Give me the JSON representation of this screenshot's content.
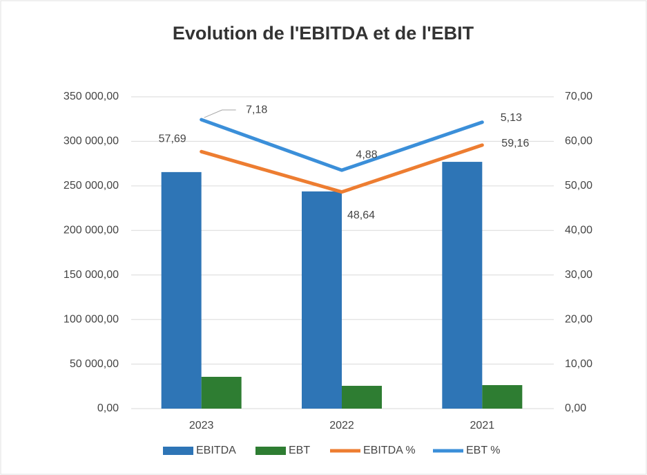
{
  "chart_data": {
    "type": "bar_line",
    "title": "Evolution de l'EBITDA et de l'EBIT",
    "categories": [
      "2023",
      "2022",
      "2021"
    ],
    "series": [
      {
        "name": "EBITDA",
        "type": "bar",
        "color": "#2e75b6",
        "values": [
          265500,
          243800,
          277000
        ]
      },
      {
        "name": "EBT",
        "type": "bar",
        "color": "#2e7d32",
        "values": [
          35700,
          25600,
          26400
        ]
      },
      {
        "name": "EBITDA %",
        "type": "line",
        "axis": "y2",
        "color": "#ed7d31",
        "values": [
          57.69,
          48.64,
          59.16
        ],
        "value_labels": [
          "57,69",
          "48,64",
          "59,16"
        ]
      },
      {
        "name": "EBT %",
        "type": "line",
        "axis": "y2",
        "stacked": true,
        "color": "#3b8fd9",
        "values": [
          7.18,
          4.88,
          5.13
        ],
        "value_labels": [
          "7,18",
          "4,88",
          "5,13"
        ]
      }
    ],
    "ylim": [
      0,
      350000
    ],
    "yticks": [
      {
        "value": 0,
        "label": "0,00"
      },
      {
        "value": 50000,
        "label": "50 000,00"
      },
      {
        "value": 100000,
        "label": "100 000,00"
      },
      {
        "value": 150000,
        "label": "150 000,00"
      },
      {
        "value": 200000,
        "label": "200 000,00"
      },
      {
        "value": 250000,
        "label": "250 000,00"
      },
      {
        "value": 300000,
        "label": "300 000,00"
      },
      {
        "value": 350000,
        "label": "350 000,00"
      }
    ],
    "y2lim": [
      0,
      70
    ],
    "y2ticks": [
      {
        "value": 0,
        "label": "0,00"
      },
      {
        "value": 10,
        "label": "10,00"
      },
      {
        "value": 20,
        "label": "20,00"
      },
      {
        "value": 30,
        "label": "30,00"
      },
      {
        "value": 40,
        "label": "40,00"
      },
      {
        "value": 50,
        "label": "50,00"
      },
      {
        "value": 60,
        "label": "60,00"
      },
      {
        "value": 70,
        "label": "70,00"
      }
    ],
    "grid": true,
    "legend": "bottom"
  }
}
